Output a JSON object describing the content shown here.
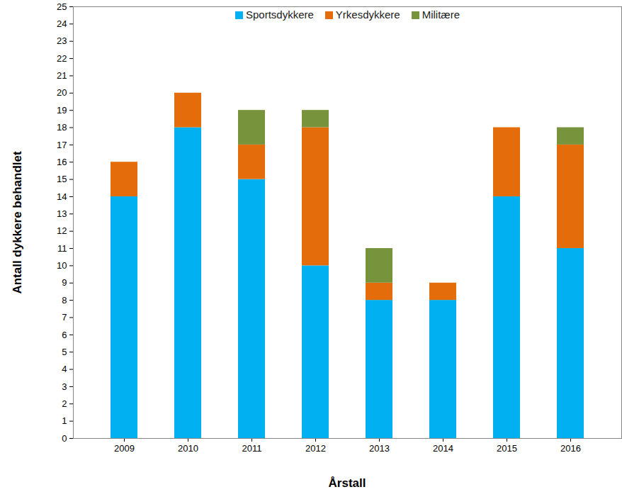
{
  "chart_data": {
    "type": "bar",
    "stacked": true,
    "legend": "top",
    "xlabel": "Årstall",
    "ylabel": "Antall dykkere behandlet",
    "categories": [
      "2009",
      "2010",
      "2011",
      "2012",
      "2013",
      "2014",
      "2015",
      "2016"
    ],
    "series": [
      {
        "name": "Sportsdykkere",
        "color": "#00b0f0",
        "values": [
          14,
          18,
          15,
          10,
          8,
          8,
          14,
          11
        ]
      },
      {
        "name": "Yrkesdykkere",
        "color": "#e46c0a",
        "values": [
          2,
          2,
          2,
          8,
          1,
          1,
          4,
          6
        ]
      },
      {
        "name": "Militære",
        "color": "#77933c",
        "values": [
          0,
          0,
          2,
          1,
          2,
          0,
          0,
          1
        ]
      }
    ],
    "ylim": [
      0,
      25
    ],
    "yticks": [
      0,
      1,
      2,
      3,
      4,
      5,
      6,
      7,
      8,
      9,
      10,
      11,
      12,
      13,
      14,
      15,
      16,
      17,
      18,
      19,
      20,
      21,
      22,
      23,
      24,
      25
    ],
    "grid": false
  }
}
